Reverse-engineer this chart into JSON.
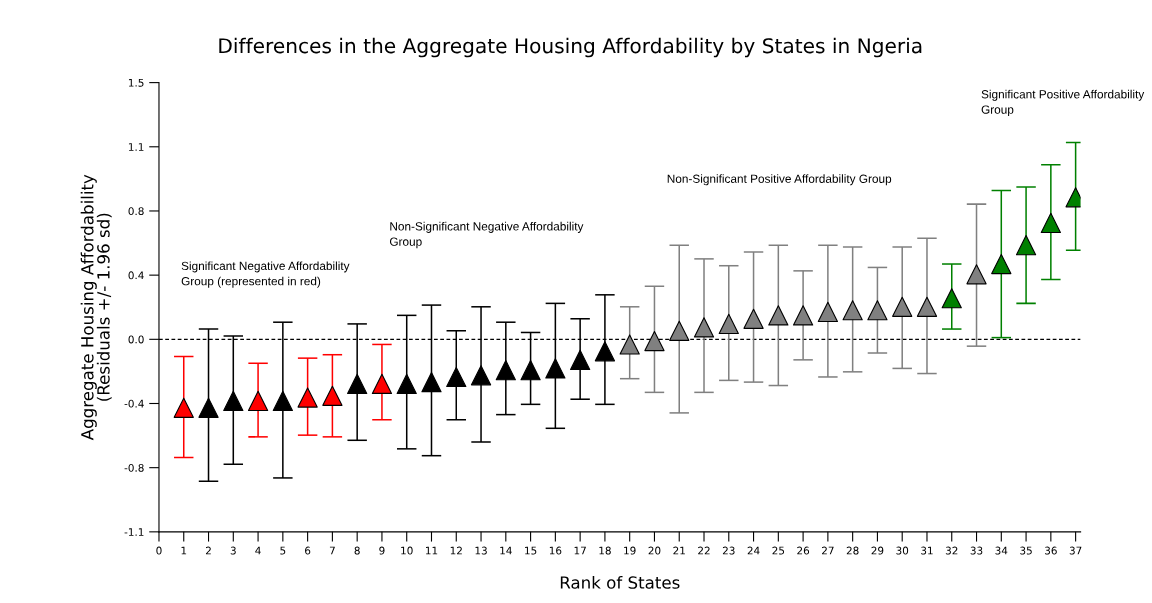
{
  "chart_data": {
    "type": "scatter",
    "title": "Differences in the Aggregate Housing Affordability by States in Ngeria",
    "xlabel": "Rank of States",
    "ylabel": "Aggregate Housing Affordability\n(Residuals +/- 1.96 sd)",
    "x": [
      1,
      2,
      3,
      4,
      5,
      6,
      7,
      8,
      9,
      10,
      11,
      12,
      13,
      14,
      15,
      16,
      17,
      18,
      19,
      20,
      21,
      22,
      23,
      24,
      25,
      26,
      27,
      28,
      29,
      30,
      31,
      32,
      33,
      34,
      35,
      36,
      37
    ],
    "values": [
      -0.4,
      -0.4,
      -0.36,
      -0.36,
      -0.36,
      -0.34,
      -0.33,
      -0.26,
      -0.26,
      -0.26,
      -0.25,
      -0.22,
      -0.21,
      -0.18,
      -0.18,
      -0.17,
      -0.12,
      -0.07,
      -0.03,
      -0.01,
      0.05,
      0.07,
      0.09,
      0.12,
      0.14,
      0.14,
      0.16,
      0.17,
      0.17,
      0.19,
      0.19,
      0.24,
      0.38,
      0.44,
      0.55,
      0.68,
      0.83
    ],
    "errors": [
      [
        -0.69,
        -0.1
      ],
      [
        -0.83,
        0.06
      ],
      [
        -0.73,
        0.02
      ],
      [
        -0.57,
        -0.14
      ],
      [
        -0.81,
        0.1
      ],
      [
        -0.56,
        -0.11
      ],
      [
        -0.57,
        -0.09
      ],
      [
        -0.59,
        0.09
      ],
      [
        -0.47,
        -0.03
      ],
      [
        -0.64,
        0.14
      ],
      [
        -0.68,
        0.2
      ],
      [
        -0.47,
        0.05
      ],
      [
        -0.6,
        0.19
      ],
      [
        -0.44,
        0.1
      ],
      [
        -0.38,
        0.04
      ],
      [
        -0.52,
        0.21
      ],
      [
        -0.35,
        0.12
      ],
      [
        -0.38,
        0.26
      ],
      [
        -0.23,
        0.19
      ],
      [
        -0.31,
        0.31
      ],
      [
        -0.43,
        0.55
      ],
      [
        -0.31,
        0.47
      ],
      [
        -0.24,
        0.43
      ],
      [
        -0.25,
        0.51
      ],
      [
        -0.27,
        0.55
      ],
      [
        -0.12,
        0.4
      ],
      [
        -0.22,
        0.55
      ],
      [
        -0.19,
        0.54
      ],
      [
        -0.08,
        0.42
      ],
      [
        -0.17,
        0.54
      ],
      [
        -0.2,
        0.59
      ],
      [
        0.06,
        0.44
      ],
      [
        -0.04,
        0.79
      ],
      [
        0.01,
        0.87
      ],
      [
        0.21,
        0.89
      ],
      [
        0.35,
        1.02
      ],
      [
        0.52,
        1.15
      ]
    ],
    "colors": [
      "#ff0000",
      "#000000",
      "#000000",
      "#ff0000",
      "#000000",
      "#ff0000",
      "#ff0000",
      "#000000",
      "#ff0000",
      "#000000",
      "#000000",
      "#000000",
      "#000000",
      "#000000",
      "#000000",
      "#000000",
      "#000000",
      "#000000",
      "#808080",
      "#808080",
      "#808080",
      "#808080",
      "#808080",
      "#808080",
      "#808080",
      "#808080",
      "#808080",
      "#808080",
      "#808080",
      "#808080",
      "#808080",
      "#008000",
      "#808080",
      "#008000",
      "#008000",
      "#008000",
      "#008000"
    ],
    "marker": "triangle",
    "xlim": [
      0,
      37.2
    ],
    "xticks": [
      0,
      1,
      2,
      3,
      4,
      5,
      6,
      7,
      8,
      9,
      10,
      11,
      12,
      13,
      14,
      15,
      16,
      17,
      18,
      19,
      20,
      21,
      22,
      23,
      24,
      25,
      26,
      27,
      28,
      29,
      30,
      31,
      32,
      33,
      34,
      35,
      36,
      37
    ],
    "ylim": [
      -1.125,
      1.5
    ],
    "yticks": [
      {
        "value": -1.125,
        "label": "-1.1"
      },
      {
        "value": -0.75,
        "label": "-0.8"
      },
      {
        "value": -0.375,
        "label": "-0.4"
      },
      {
        "value": 0,
        "label": "0.0"
      },
      {
        "value": 0.375,
        "label": "0.4"
      },
      {
        "value": 0.75,
        "label": "0.8"
      },
      {
        "value": 1.125,
        "label": "1.1"
      },
      {
        "value": 1.5,
        "label": "1.5"
      }
    ],
    "ref_lines": [
      {
        "axis": "y",
        "value": 0,
        "color": "#000000",
        "line_style": "dashed"
      }
    ],
    "annotations": [
      "Significant Negative Affordability\nGroup (represented in red)",
      "Non-Significant Negative Affordability\nGroup",
      "Non-Significant Positive Affordability Group",
      "Significant Positive Affordability\nGroup"
    ],
    "grid": false,
    "legend": false
  }
}
